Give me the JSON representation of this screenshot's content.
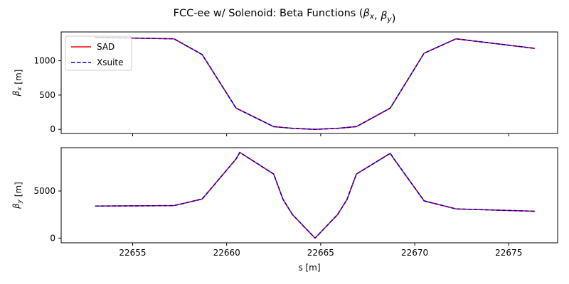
{
  "figure": {
    "title": "FCC-ee w/ Solenoid: Beta Functions (β_x, β_y)"
  },
  "colors": {
    "sad": "#ff0000",
    "xsuite": "#0000cc",
    "axes": "#000000",
    "background": "#ffffff"
  },
  "chart_data": [
    {
      "type": "line",
      "panel": "top",
      "ylabel": "β_x [m]",
      "xlabel": "",
      "xlim": [
        22651.2,
        22677.6
      ],
      "ylim": [
        -60,
        1420
      ],
      "xticks": [
        22655,
        22660,
        22665,
        22670,
        22675
      ],
      "yticks": [
        0,
        500,
        1000
      ],
      "ytick_labels": [
        "0",
        "500",
        "1000"
      ],
      "show_xtick_labels": false,
      "grid": false,
      "legend": {
        "placement": "top-left",
        "entries": [
          "SAD",
          "Xsuite"
        ]
      },
      "x": [
        22653.0,
        22657.2,
        22658.7,
        22660.5,
        22662.5,
        22663.5,
        22664.7,
        22665.9,
        22666.9,
        22668.7,
        22670.5,
        22672.2,
        22676.4
      ],
      "series": [
        {
          "name": "SAD",
          "style": "solid",
          "values": [
            1340,
            1320,
            1090,
            310,
            40,
            15,
            0,
            15,
            40,
            310,
            1110,
            1320,
            1180
          ]
        },
        {
          "name": "Xsuite",
          "style": "dashed",
          "values": [
            1340,
            1320,
            1090,
            310,
            40,
            15,
            0,
            15,
            40,
            310,
            1110,
            1320,
            1180
          ]
        }
      ]
    },
    {
      "type": "line",
      "panel": "bottom",
      "ylabel": "β_y [m]",
      "xlabel": "s [m]",
      "xlim": [
        22651.2,
        22677.6
      ],
      "ylim": [
        -500,
        9600
      ],
      "xticks": [
        22655,
        22660,
        22665,
        22670,
        22675
      ],
      "xtick_labels": [
        "22655",
        "22660",
        "22665",
        "22670",
        "22675"
      ],
      "yticks": [
        0,
        5000
      ],
      "ytick_labels": [
        "0",
        "5000"
      ],
      "grid": false,
      "x": [
        22653.0,
        22657.2,
        22658.7,
        22660.5,
        22660.7,
        22662.5,
        22663.0,
        22663.5,
        22664.7,
        22665.9,
        22666.4,
        22666.9,
        22668.7,
        22668.9,
        22670.5,
        22672.2,
        22676.4
      ],
      "series": [
        {
          "name": "SAD",
          "style": "solid",
          "values": [
            3400,
            3450,
            4150,
            8400,
            9100,
            6800,
            4100,
            2500,
            0,
            2500,
            4100,
            6800,
            9000,
            8400,
            3950,
            3100,
            2850
          ]
        },
        {
          "name": "Xsuite",
          "style": "dashed",
          "values": [
            3400,
            3450,
            4150,
            8400,
            9100,
            6800,
            4100,
            2500,
            0,
            2500,
            4100,
            6800,
            9000,
            8400,
            3950,
            3100,
            2850
          ]
        }
      ]
    }
  ]
}
